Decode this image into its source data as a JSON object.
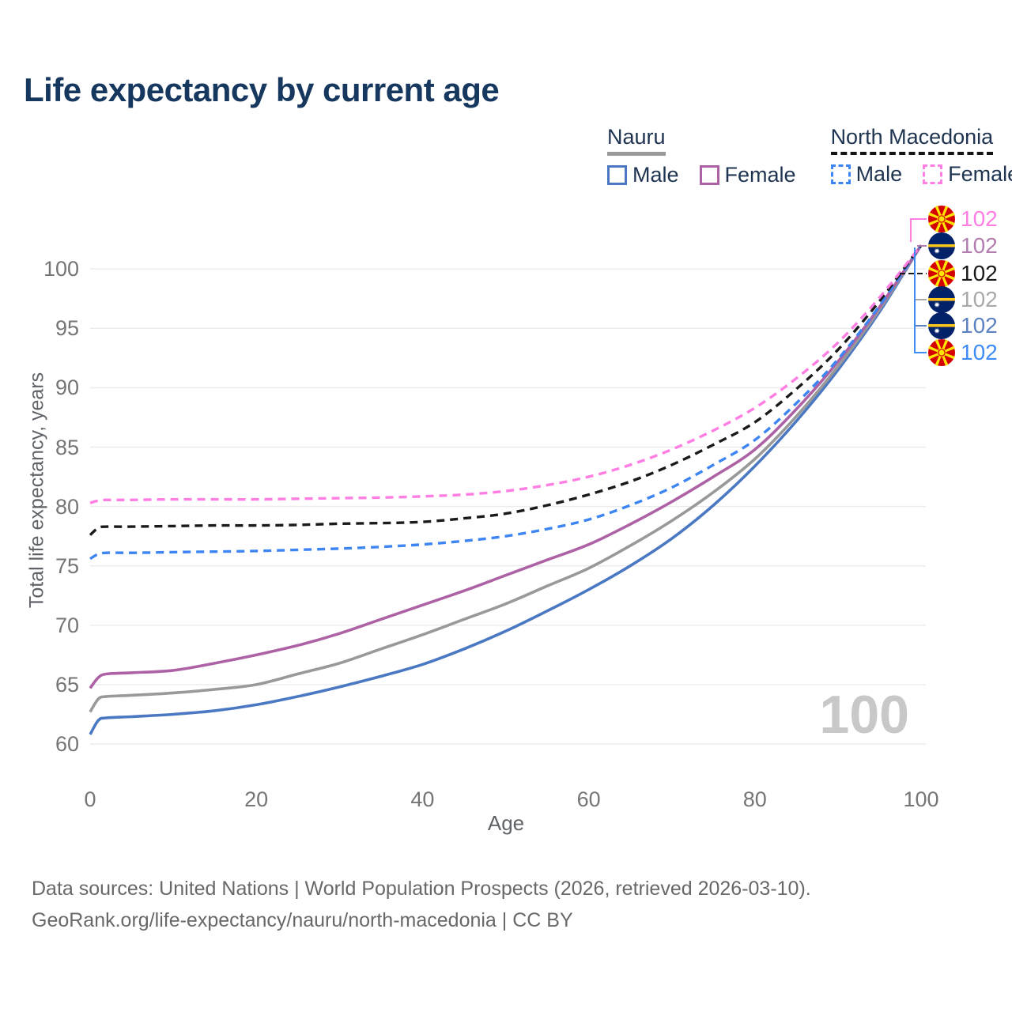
{
  "title": "Life expectancy by current age",
  "legend": {
    "groups": [
      {
        "country": "Nauru",
        "line_style": "solid",
        "underline_color": "#9a9a9a",
        "items": [
          {
            "label": "Male",
            "color": "#4a78c2"
          },
          {
            "label": "Female",
            "color": "#ad62a5"
          }
        ]
      },
      {
        "country": "North Macedonia",
        "line_style": "dashed",
        "underline_color": "#141414",
        "items": [
          {
            "label": "Male",
            "color": "#3d85f2"
          },
          {
            "label": "Female",
            "color": "#ff7ee3"
          }
        ]
      }
    ]
  },
  "axes": {
    "x_label": "Age",
    "y_label": "Total life expectancy, years",
    "x_ticks": [
      0,
      20,
      40,
      60,
      80,
      100
    ],
    "y_ticks": [
      60,
      65,
      70,
      75,
      80,
      85,
      90,
      95,
      100
    ]
  },
  "watermark": "100",
  "chart_data": {
    "type": "line",
    "title": "Life expectancy by current age",
    "xlabel": "Age",
    "ylabel": "Total life expectancy, years",
    "xlim": [
      0,
      100
    ],
    "ylim": [
      58.5,
      103.5
    ],
    "grid": "horizontal-only",
    "legend_position": "top-right",
    "x": [
      0,
      1,
      2,
      5,
      10,
      15,
      20,
      25,
      30,
      35,
      40,
      45,
      50,
      55,
      60,
      65,
      70,
      75,
      80,
      85,
      90,
      95,
      100
    ],
    "series": [
      {
        "name": "Nauru Male",
        "country": "Nauru",
        "sex": "Male",
        "style": "solid",
        "color": "#4a78c2",
        "values": [
          60.8,
          62.0,
          62.2,
          62.3,
          62.5,
          62.8,
          63.3,
          64.0,
          64.8,
          65.7,
          66.7,
          68.0,
          69.5,
          71.2,
          73.0,
          75.0,
          77.3,
          80.1,
          83.4,
          87.2,
          91.5,
          96.4,
          102
        ]
      },
      {
        "name": "Nauru Both sexes",
        "country": "Nauru",
        "sex": "Both",
        "style": "solid",
        "color": "#999999",
        "values": [
          62.7,
          63.8,
          64.0,
          64.1,
          64.3,
          64.6,
          65.0,
          65.9,
          66.8,
          68.0,
          69.2,
          70.5,
          71.8,
          73.3,
          74.8,
          76.7,
          78.8,
          81.2,
          84.0,
          87.6,
          91.8,
          96.6,
          102
        ]
      },
      {
        "name": "Nauru Female",
        "country": "Nauru",
        "sex": "Female",
        "style": "solid",
        "color": "#ad62a5",
        "values": [
          64.7,
          65.6,
          65.9,
          66.0,
          66.2,
          66.8,
          67.5,
          68.3,
          69.3,
          70.5,
          71.7,
          72.9,
          74.2,
          75.5,
          76.8,
          78.5,
          80.4,
          82.5,
          84.8,
          88.2,
          92.2,
          96.8,
          102
        ]
      },
      {
        "name": "North Macedonia Male",
        "country": "North Macedonia",
        "sex": "Male",
        "style": "dashed",
        "color": "#3d85f2",
        "values": [
          75.6,
          76.0,
          76.1,
          76.1,
          76.15,
          76.2,
          76.25,
          76.35,
          76.45,
          76.6,
          76.8,
          77.1,
          77.5,
          78.1,
          78.9,
          80.1,
          81.6,
          83.5,
          85.6,
          88.7,
          92.4,
          96.9,
          102
        ]
      },
      {
        "name": "North Macedonia Both sexes",
        "country": "North Macedonia",
        "sex": "Both",
        "style": "dashed",
        "color": "#1a1a1a",
        "values": [
          77.6,
          78.2,
          78.3,
          78.3,
          78.35,
          78.4,
          78.4,
          78.45,
          78.55,
          78.6,
          78.7,
          79.0,
          79.4,
          80.1,
          81.0,
          82.1,
          83.5,
          85.2,
          87.1,
          89.9,
          93.2,
          97.3,
          102
        ]
      },
      {
        "name": "North Macedonia Female",
        "country": "North Macedonia",
        "sex": "Female",
        "style": "dashed",
        "color": "#ff7ee3",
        "values": [
          80.3,
          80.5,
          80.55,
          80.55,
          80.6,
          80.6,
          80.6,
          80.65,
          80.7,
          80.75,
          80.85,
          81.0,
          81.3,
          81.8,
          82.5,
          83.5,
          84.8,
          86.4,
          88.3,
          90.8,
          93.8,
          97.6,
          102
        ]
      }
    ],
    "end_value_labels": [
      {
        "series": "North Macedonia Female",
        "flag": "north-macedonia-flag-icon",
        "value": "102",
        "color": "#ff7ee3"
      },
      {
        "series": "Nauru Female",
        "flag": "nauru-flag-icon",
        "value": "102",
        "color": "#b27dae"
      },
      {
        "series": "North Macedonia Both sexes",
        "flag": "north-macedonia-flag-icon",
        "value": "102",
        "color": "#1a1a1a"
      },
      {
        "series": "Nauru Both sexes",
        "flag": "nauru-flag-icon",
        "value": "102",
        "color": "#a9a9a9"
      },
      {
        "series": "Nauru Male",
        "flag": "nauru-flag-icon",
        "value": "102",
        "color": "#5d82c1"
      },
      {
        "series": "North Macedonia Male",
        "flag": "north-macedonia-flag-icon",
        "value": "102",
        "color": "#3f8cf5"
      }
    ]
  },
  "footer": {
    "line1": "Data sources: United Nations | World Population Prospects (2026, retrieved 2026-03-10).",
    "line2": "GeoRank.org/life-expectancy/nauru/north-macedonia | CC BY"
  }
}
